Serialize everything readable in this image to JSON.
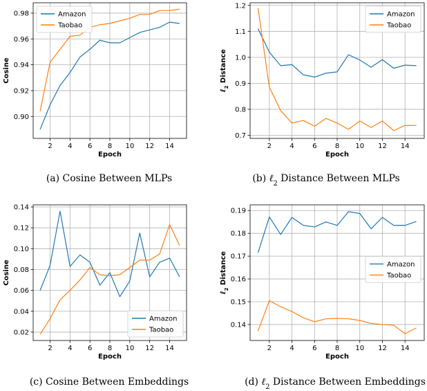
{
  "chart_data": [
    {
      "type": "line",
      "caption": "(a)  Cosine Between MLPs",
      "xlabel": "Epoch",
      "ylabel": "Cosine",
      "xlim": [
        0.3,
        15.7
      ],
      "ylim": [
        0.883,
        0.988
      ],
      "xticks": [
        2,
        4,
        6,
        8,
        10,
        12,
        14
      ],
      "yticks": [
        0.9,
        0.92,
        0.94,
        0.96,
        0.98
      ],
      "ytick_labels": [
        "0.90",
        "0.92",
        "0.94",
        "0.96",
        "0.98"
      ],
      "grid": true,
      "legend": "top-left",
      "x": [
        1,
        2,
        3,
        4,
        5,
        6,
        7,
        8,
        9,
        10,
        11,
        12,
        13,
        14,
        15
      ],
      "series": [
        {
          "name": "Amazon",
          "color": "#1f77b4",
          "values": [
            0.89,
            0.909,
            0.924,
            0.934,
            0.946,
            0.952,
            0.959,
            0.957,
            0.957,
            0.961,
            0.965,
            0.967,
            0.969,
            0.973,
            0.972
          ]
        },
        {
          "name": "Taobao",
          "color": "#ff7f0e",
          "values": [
            0.904,
            0.942,
            0.952,
            0.962,
            0.963,
            0.969,
            0.971,
            0.972,
            0.974,
            0.976,
            0.979,
            0.979,
            0.982,
            0.982,
            0.983
          ]
        }
      ]
    },
    {
      "type": "line",
      "caption": "(b)  ℓ2 Distance Between MLPs",
      "xlabel": "Epoch",
      "ylabel": "ℓ2 Distance",
      "xlim": [
        0.3,
        15.7
      ],
      "ylim": [
        0.688,
        1.21
      ],
      "xticks": [
        2,
        4,
        6,
        8,
        10,
        12,
        14
      ],
      "yticks": [
        0.7,
        0.8,
        0.9,
        1.0,
        1.1,
        1.2
      ],
      "ytick_labels": [
        "0.7",
        "0.8",
        "0.9",
        "1.0",
        "1.1",
        "1.2"
      ],
      "grid": true,
      "legend": "top-right",
      "x": [
        1,
        2,
        3,
        4,
        5,
        6,
        7,
        8,
        9,
        10,
        11,
        12,
        13,
        14,
        15
      ],
      "series": [
        {
          "name": "Amazon",
          "color": "#1f77b4",
          "values": [
            1.11,
            1.02,
            0.968,
            0.972,
            0.933,
            0.924,
            0.939,
            0.944,
            1.01,
            0.99,
            0.962,
            0.991,
            0.958,
            0.97,
            0.968
          ]
        },
        {
          "name": "Taobao",
          "color": "#ff7f0e",
          "values": [
            1.19,
            0.885,
            0.795,
            0.747,
            0.757,
            0.735,
            0.765,
            0.747,
            0.723,
            0.755,
            0.73,
            0.755,
            0.718,
            0.738,
            0.738
          ]
        }
      ]
    },
    {
      "type": "line",
      "caption": "(c)  Cosine Between Embeddings",
      "xlabel": "Epoch",
      "ylabel": "Cosine",
      "xlim": [
        0.3,
        15.7
      ],
      "ylim": [
        0.012,
        0.142
      ],
      "xticks": [
        2,
        4,
        6,
        8,
        10,
        12,
        14
      ],
      "yticks": [
        0.02,
        0.04,
        0.06,
        0.08,
        0.1,
        0.12,
        0.14
      ],
      "ytick_labels": [
        "0.02",
        "0.04",
        "0.06",
        "0.08",
        "0.10",
        "0.12",
        "0.14"
      ],
      "grid": true,
      "legend": "bottom-right",
      "x": [
        1,
        2,
        3,
        4,
        5,
        6,
        7,
        8,
        9,
        10,
        11,
        12,
        13,
        14,
        15
      ],
      "series": [
        {
          "name": "Amazon",
          "color": "#1f77b4",
          "values": [
            0.06,
            0.084,
            0.136,
            0.083,
            0.094,
            0.087,
            0.065,
            0.077,
            0.054,
            0.069,
            0.115,
            0.073,
            0.087,
            0.091,
            0.073
          ]
        },
        {
          "name": "Taobao",
          "color": "#ff7f0e",
          "values": [
            0.018,
            0.033,
            0.051,
            0.06,
            0.07,
            0.082,
            0.075,
            0.074,
            0.075,
            0.082,
            0.089,
            0.089,
            0.095,
            0.123,
            0.103
          ]
        }
      ]
    },
    {
      "type": "line",
      "caption": "(d)  ℓ2 Distance Between Embeddings",
      "xlabel": "Epoch",
      "ylabel": "ℓ2 Distance",
      "xlim": [
        0.3,
        15.7
      ],
      "ylim": [
        0.133,
        0.1925
      ],
      "xticks": [
        2,
        4,
        6,
        8,
        10,
        12,
        14
      ],
      "yticks": [
        0.14,
        0.15,
        0.16,
        0.17,
        0.18,
        0.19
      ],
      "ytick_labels": [
        "0.14",
        "0.15",
        "0.16",
        "0.17",
        "0.18",
        "0.19"
      ],
      "grid": true,
      "legend": "center-right",
      "x": [
        1,
        2,
        3,
        4,
        5,
        6,
        7,
        8,
        9,
        10,
        11,
        12,
        13,
        14,
        15
      ],
      "series": [
        {
          "name": "Amazon",
          "color": "#1f77b4",
          "values": [
            0.1715,
            0.1872,
            0.1795,
            0.187,
            0.1835,
            0.1828,
            0.185,
            0.1835,
            0.1895,
            0.1887,
            0.182,
            0.187,
            0.1835,
            0.1835,
            0.1852
          ]
        },
        {
          "name": "Taobao",
          "color": "#ff7f0e",
          "values": [
            0.1372,
            0.1505,
            0.1478,
            0.1457,
            0.143,
            0.1412,
            0.1425,
            0.1427,
            0.1425,
            0.1418,
            0.1405,
            0.14,
            0.1397,
            0.136,
            0.1385
          ]
        }
      ]
    }
  ]
}
